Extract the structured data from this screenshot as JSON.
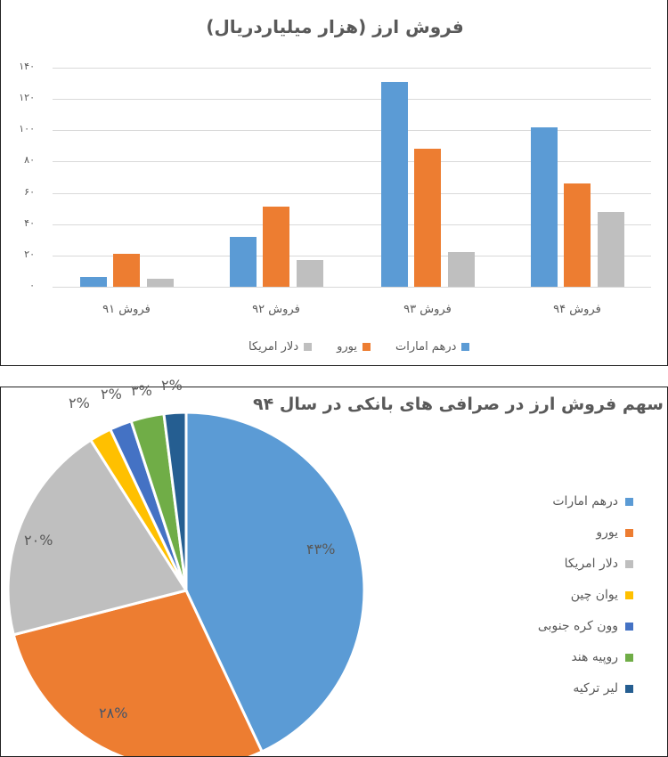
{
  "chart_data": [
    {
      "type": "bar",
      "title": "فروش ارز (هزار میلیاردریال)",
      "xlabel": "",
      "ylabel": "",
      "ylim": [
        0,
        140
      ],
      "yticks": [
        "۰",
        "۲۰",
        "۴۰",
        "۶۰",
        "۸۰",
        "۱۰۰",
        "۱۲۰",
        "۱۴۰"
      ],
      "grid": true,
      "legend_position": "bottom",
      "categories": [
        "فروش ۹۱",
        "فروش ۹۲",
        "فروش ۹۳",
        "فروش ۹۴"
      ],
      "series": [
        {
          "name": "درهم امارات",
          "color": "#5B9BD5",
          "values": [
            6,
            32,
            131,
            102
          ]
        },
        {
          "name": "یورو",
          "color": "#ED7D31",
          "values": [
            21,
            51,
            88,
            66
          ]
        },
        {
          "name": "دلار امریکا",
          "color": "#BFBFBF",
          "values": [
            5,
            17,
            22,
            48
          ]
        }
      ]
    },
    {
      "type": "pie",
      "title": "سهم فروش ارز در صرافی های بانکی در سال ۹۴",
      "legend_position": "right",
      "slices": [
        {
          "label": "درهم امارات",
          "value": 43,
          "display": "۴۳%",
          "color": "#5B9BD5"
        },
        {
          "label": "یورو",
          "value": 28,
          "display": "۲۸%",
          "color": "#ED7D31"
        },
        {
          "label": "دلار امریکا",
          "value": 20,
          "display": "۲۰%",
          "color": "#BFBFBF"
        },
        {
          "label": "یوان چین",
          "value": 2,
          "display": "۲%",
          "color": "#FFC000"
        },
        {
          "label": "وون کره جنوبی",
          "value": 2,
          "display": "۲%",
          "color": "#4472C4"
        },
        {
          "label": "روپیه هند",
          "value": 3,
          "display": "۳%",
          "color": "#70AD47"
        },
        {
          "label": "لیر ترکیه",
          "value": 2,
          "display": "۲%",
          "color": "#255E91"
        }
      ]
    }
  ]
}
